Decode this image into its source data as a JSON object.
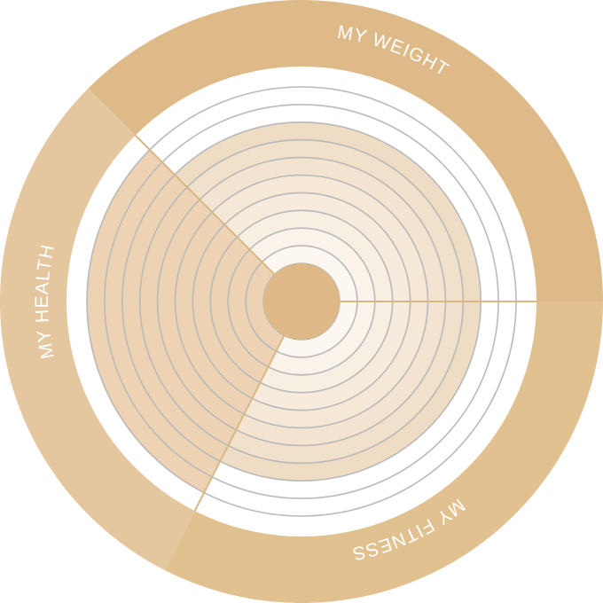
{
  "segments": [
    {
      "id": "weight",
      "label": "MY WEIGHT",
      "color": "#DDBA88"
    },
    {
      "id": "fitness",
      "label": "MY FITNESS",
      "color": "#E1C18F"
    },
    {
      "id": "health",
      "label": "MY HEALTH",
      "color": "#E4C79E"
    }
  ],
  "ring_count": 11,
  "highlighted_levels": {
    "health": 10,
    "fitness": 8,
    "weight": 8
  },
  "colors": {
    "background": "#ffffff",
    "ring_stroke": "#B9B9B9",
    "divider": "#D8B784",
    "hub": "#DEB886",
    "level_fill_inner": "#FCF7F0",
    "level_fill_outer": "#EFDCC4",
    "health_fill": "#EDD3B3"
  }
}
